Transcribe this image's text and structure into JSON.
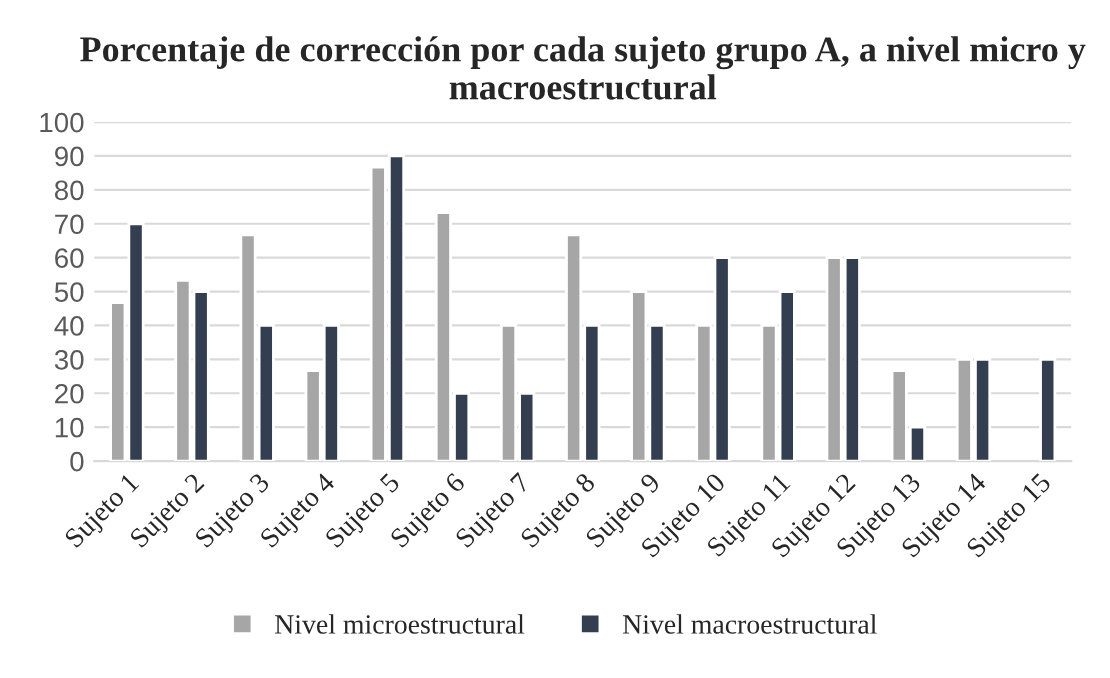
{
  "chart_data": {
    "type": "bar",
    "title": "Porcentaje de corrección por cada sujeto grupo A, a nivel micro y macroestructural",
    "categories": [
      "Sujeto 1",
      "Sujeto 2",
      "Sujeto 3",
      "Sujeto 4",
      "Sujeto 5",
      "Sujeto 6",
      "Sujeto 7",
      "Sujeto 8",
      "Sujeto 9",
      "Sujeto 10",
      "Sujeto 11",
      "Sujeto 12",
      "Sujeto 13",
      "Sujeto 14",
      "Sujeto 15"
    ],
    "series": [
      {
        "name": "Nivel microestructural",
        "color": "#a6a6a6",
        "values": [
          46.7,
          53.3,
          66.7,
          26.7,
          86.7,
          73.3,
          40,
          66.7,
          50,
          40,
          40,
          60,
          26.7,
          30,
          null
        ]
      },
      {
        "name": "Nivel macroestructural",
        "color": "#333f50",
        "values": [
          70,
          50,
          40,
          40,
          90,
          20,
          20,
          40,
          40,
          60,
          50,
          60,
          10,
          30,
          30
        ]
      }
    ],
    "ylim": [
      0,
      100
    ],
    "yticks": [
      0,
      10,
      20,
      30,
      40,
      50,
      60,
      70,
      80,
      90,
      100
    ],
    "grid": "y",
    "legend": "bottom"
  }
}
